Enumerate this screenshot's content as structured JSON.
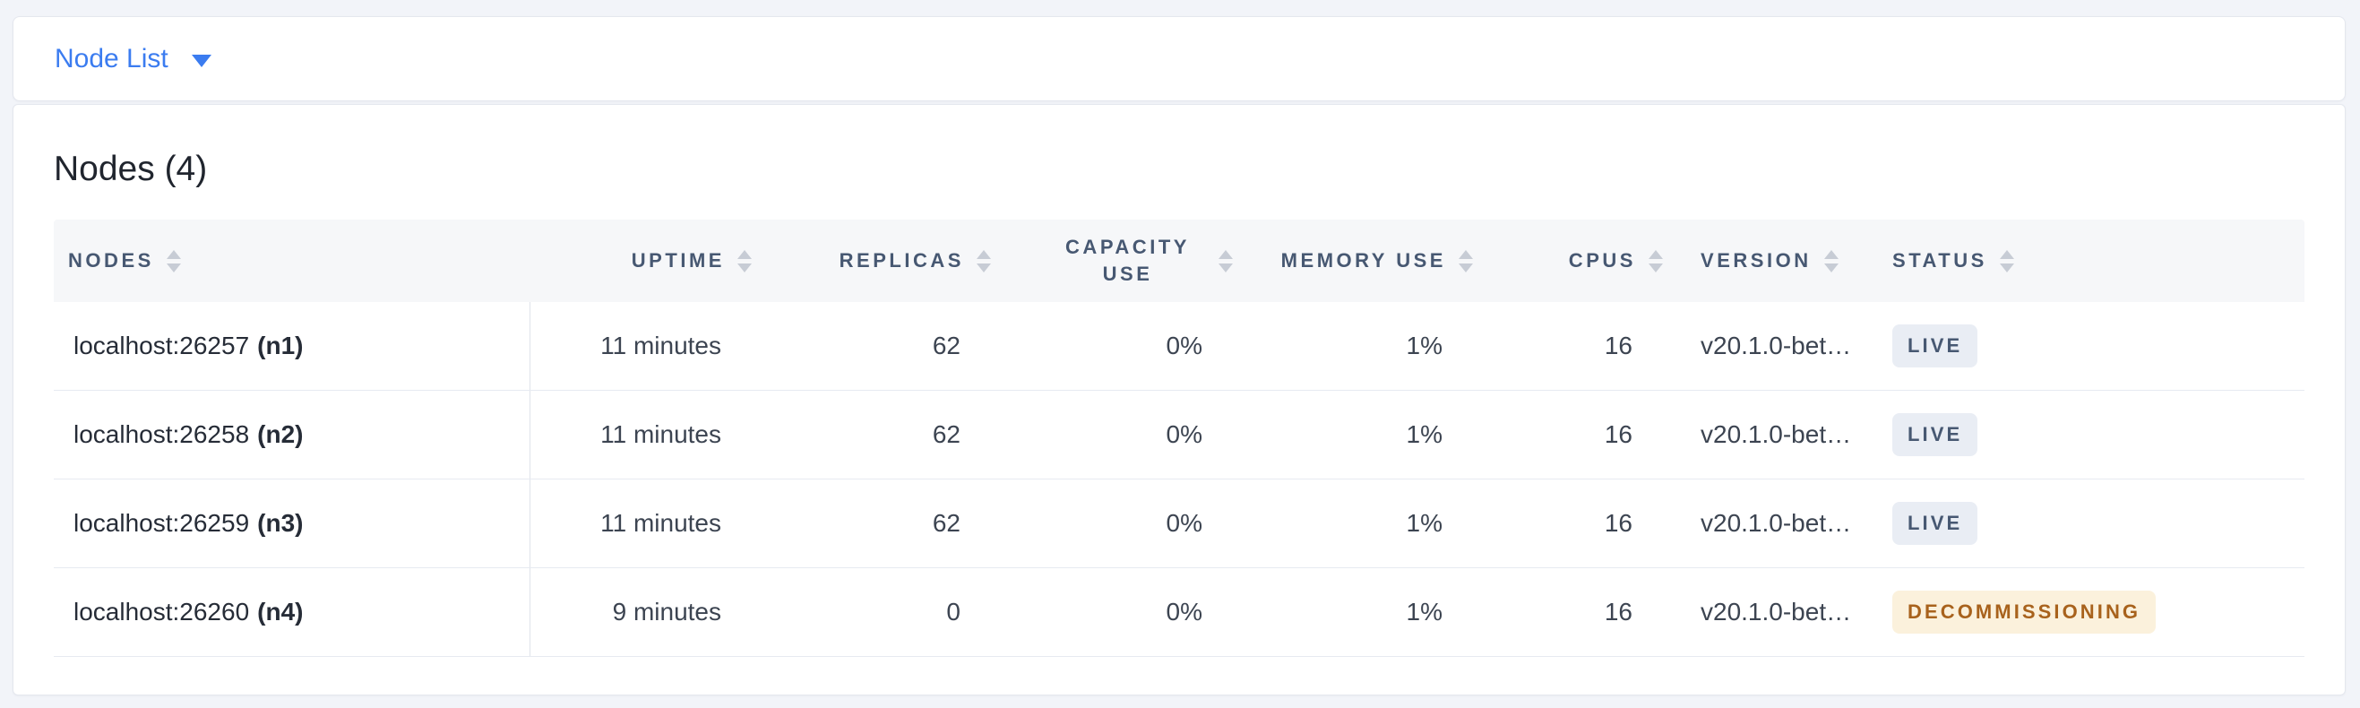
{
  "selector": {
    "label": "Node List",
    "accent_color": "#3b7cf0"
  },
  "main": {
    "title": "Nodes (4)"
  },
  "table": {
    "columns": [
      {
        "label": "NODES",
        "align": "left",
        "sortable": true
      },
      {
        "label": "UPTIME",
        "align": "right",
        "sortable": true
      },
      {
        "label": "REPLICAS",
        "align": "right",
        "sortable": true
      },
      {
        "label": "CAPACITY USE",
        "align": "right",
        "sortable": true
      },
      {
        "label": "MEMORY USE",
        "align": "right",
        "sortable": true
      },
      {
        "label": "CPUS",
        "align": "right",
        "sortable": true
      },
      {
        "label": "VERSION",
        "align": "left",
        "sortable": true
      },
      {
        "label": "STATUS",
        "align": "left",
        "sortable": true
      }
    ],
    "rows": [
      {
        "address": "localhost:26257",
        "node_id": "(n1)",
        "uptime": "11 minutes",
        "replicas": "62",
        "capacity_use": "0%",
        "memory_use": "1%",
        "cpus": "16",
        "version": "v20.1.0-bet…",
        "status": "LIVE",
        "badge_class": "badge badge-live"
      },
      {
        "address": "localhost:26258",
        "node_id": "(n2)",
        "uptime": "11 minutes",
        "replicas": "62",
        "capacity_use": "0%",
        "memory_use": "1%",
        "cpus": "16",
        "version": "v20.1.0-bet…",
        "status": "LIVE",
        "badge_class": "badge badge-live"
      },
      {
        "address": "localhost:26259",
        "node_id": "(n3)",
        "uptime": "11 minutes",
        "replicas": "62",
        "capacity_use": "0%",
        "memory_use": "1%",
        "cpus": "16",
        "version": "v20.1.0-bet…",
        "status": "LIVE",
        "badge_class": "badge badge-live"
      },
      {
        "address": "localhost:26260",
        "node_id": "(n4)",
        "uptime": "9 minutes",
        "replicas": "0",
        "capacity_use": "0%",
        "memory_use": "1%",
        "cpus": "16",
        "version": "v20.1.0-bet…",
        "status": "DECOMMISSIONING",
        "badge_class": "badge badge-warn"
      }
    ],
    "status_colors": {
      "live_bg": "#e9edf4",
      "live_text": "#475872",
      "decommissioning_bg": "#fbf1dc",
      "decommissioning_text": "#a8621c"
    }
  }
}
